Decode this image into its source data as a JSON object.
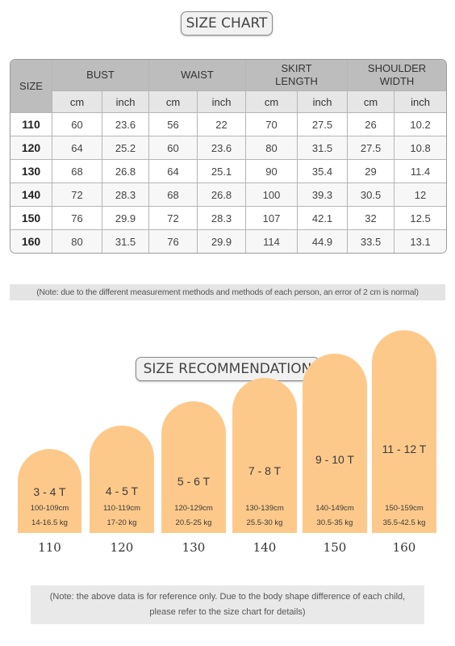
{
  "chart_title": "SIZE CHART",
  "table": {
    "size_header": "SIZE",
    "groups": [
      {
        "line1": "BUST",
        "line2": ""
      },
      {
        "line1": "WAIST",
        "line2": ""
      },
      {
        "line1": "SKIRT",
        "line2": "LENGTH"
      },
      {
        "line1": "SHOULDER",
        "line2": "WIDTH"
      }
    ],
    "units": [
      "cm",
      "inch",
      "cm",
      "inch",
      "cm",
      "inch",
      "cm",
      "inch"
    ],
    "rows": [
      [
        "110",
        "60",
        "23.6",
        "56",
        "22",
        "70",
        "27.5",
        "26",
        "10.2"
      ],
      [
        "120",
        "64",
        "25.2",
        "60",
        "23.6",
        "80",
        "31.5",
        "27.5",
        "10.8"
      ],
      [
        "130",
        "68",
        "26.8",
        "64",
        "25.1",
        "90",
        "35.4",
        "29",
        "11.4"
      ],
      [
        "140",
        "72",
        "28.3",
        "68",
        "26.8",
        "100",
        "39.3",
        "30.5",
        "12"
      ],
      [
        "150",
        "76",
        "29.9",
        "72",
        "28.3",
        "107",
        "42.1",
        "32",
        "12.5"
      ],
      [
        "160",
        "80",
        "31.5",
        "76",
        "29.9",
        "114",
        "44.9",
        "33.5",
        "13.1"
      ]
    ]
  },
  "note1": "(Note: due to the different measurement methods and methods of each person, an error of 2 cm is normal)",
  "rec_title": "SIZE RECOMMENDATION",
  "chart_data": {
    "type": "bar",
    "categories": [
      "110",
      "120",
      "130",
      "140",
      "150",
      "160"
    ],
    "ages": [
      "3 - 4 T",
      "4 - 5 T",
      "5 - 6 T",
      "7 - 8 T",
      "9 - 10 T",
      "11 - 12 T"
    ],
    "heights": [
      "100-109cm",
      "110-119cm",
      "120-129cm",
      "130-139cm",
      "140-149cm",
      "150-159cm"
    ],
    "weights": [
      "14-16.5 kg",
      "17-20 kg",
      "20.5-25 kg",
      "25.5-30 kg",
      "30.5-35 kg",
      "35.5-42.5 kg"
    ],
    "values": [
      1,
      2,
      3,
      4,
      5,
      6
    ],
    "color": "#fdc98a"
  },
  "note2": {
    "line1": "(Note: the above data is for reference only. Due to the body shape difference of each child,",
    "line2": "please refer to the size chart for details)"
  }
}
